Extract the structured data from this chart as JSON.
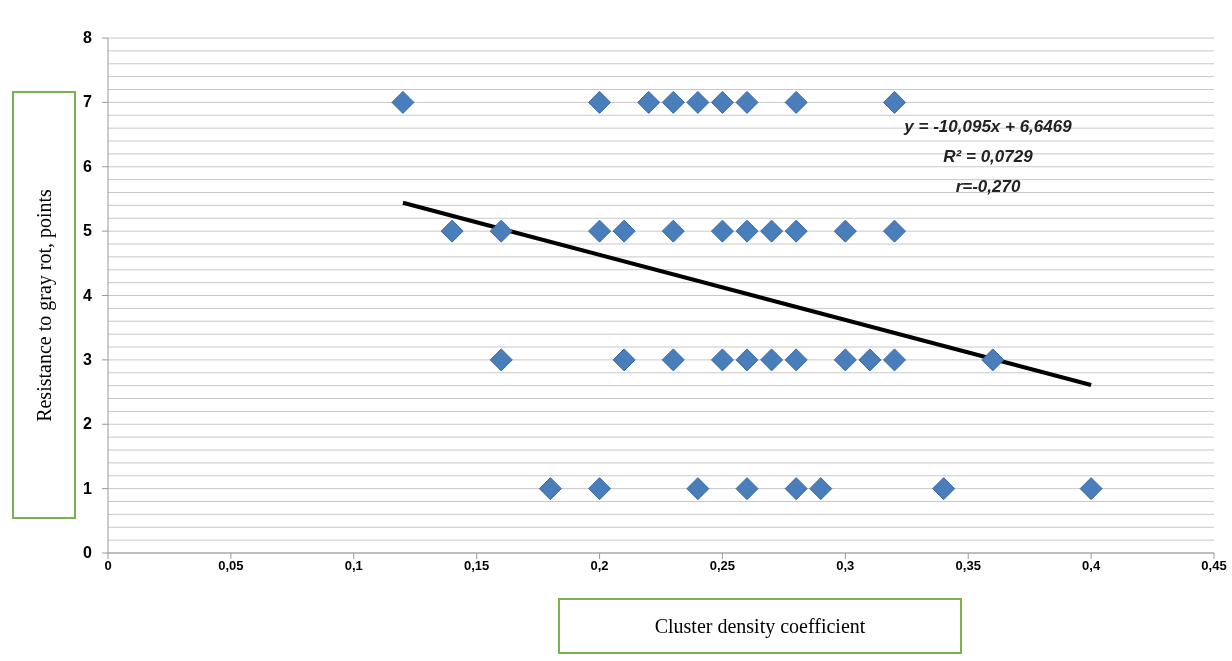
{
  "chart_data": {
    "type": "scatter",
    "xlabel": "Cluster density coefficient",
    "ylabel": "Resistance to gray rot, points",
    "xlim": [
      0,
      0.45
    ],
    "xticks": [
      {
        "value": 0,
        "label": "0"
      },
      {
        "value": 0.05,
        "label": "0,05"
      },
      {
        "value": 0.1,
        "label": "0,1"
      },
      {
        "value": 0.15,
        "label": "0,15"
      },
      {
        "value": 0.2,
        "label": "0,2"
      },
      {
        "value": 0.25,
        "label": "0,25"
      },
      {
        "value": 0.3,
        "label": "0,3"
      },
      {
        "value": 0.35,
        "label": "0,35"
      },
      {
        "value": 0.4,
        "label": "0,4"
      },
      {
        "value": 0.45,
        "label": "0,45"
      }
    ],
    "ylim": [
      0,
      8
    ],
    "yticks": [
      0,
      {
        "value": 0.2,
        "label": null
      },
      {
        "value": 0.4,
        "label": null
      },
      {
        "value": 0.6,
        "label": null
      },
      {
        "value": 0.8,
        "label": null
      },
      1,
      {
        "value": 1.2,
        "label": null
      },
      {
        "value": 1.4,
        "label": null
      },
      {
        "value": 1.6,
        "label": null
      },
      {
        "value": 1.8,
        "label": null
      },
      2,
      {
        "value": 2.2,
        "label": null
      },
      {
        "value": 2.4,
        "label": null
      },
      {
        "value": 2.6,
        "label": null
      },
      {
        "value": 2.8,
        "label": null
      },
      3,
      {
        "value": 3.2,
        "label": null
      },
      {
        "value": 3.4,
        "label": null
      },
      {
        "value": 3.6,
        "label": null
      },
      {
        "value": 3.8,
        "label": null
      },
      4,
      {
        "value": 4.2,
        "label": null
      },
      {
        "value": 4.4,
        "label": null
      },
      {
        "value": 4.6,
        "label": null
      },
      {
        "value": 4.8,
        "label": null
      },
      5,
      {
        "value": 5.2,
        "label": null
      },
      {
        "value": 5.4,
        "label": null
      },
      {
        "value": 5.6,
        "label": null
      },
      {
        "value": 5.8,
        "label": null
      },
      6,
      {
        "value": 6.2,
        "label": null
      },
      {
        "value": 6.4,
        "label": null
      },
      {
        "value": 6.6,
        "label": null
      },
      {
        "value": 6.8,
        "label": null
      },
      7,
      {
        "value": 7.2,
        "label": null
      },
      {
        "value": 7.4,
        "label": null
      },
      {
        "value": 7.6,
        "label": null
      },
      {
        "value": 7.8,
        "label": null
      },
      8
    ],
    "grid": "y",
    "series": [
      {
        "marker": "diamond",
        "color": "#4a7ebb",
        "x": [
          0.12,
          0.2,
          0.22,
          0.23,
          0.24,
          0.25,
          0.26,
          0.28,
          0.32,
          0.14,
          0.16,
          0.2,
          0.21,
          0.23,
          0.25,
          0.26,
          0.27,
          0.28,
          0.3,
          0.32,
          0.16,
          0.21,
          0.23,
          0.25,
          0.26,
          0.27,
          0.28,
          0.3,
          0.31,
          0.32,
          0.36,
          0.18,
          0.2,
          0.24,
          0.26,
          0.28,
          0.29,
          0.34,
          0.4
        ],
        "values": [
          7,
          7,
          7,
          7,
          7,
          7,
          7,
          7,
          7,
          5,
          5,
          5,
          5,
          5,
          5,
          5,
          5,
          5,
          5,
          5,
          3,
          3,
          3,
          3,
          3,
          3,
          3,
          3,
          3,
          3,
          3,
          1,
          1,
          1,
          1,
          1,
          1,
          1,
          1
        ]
      },
      {
        "type": "line",
        "color": "#000000",
        "x": [
          0.12,
          0.4
        ],
        "values": [
          5.44,
          2.61
        ]
      }
    ],
    "annotations": [
      "y = -10,095x + 6,6469",
      "R² = 0,0729",
      "r=-0,270"
    ]
  }
}
